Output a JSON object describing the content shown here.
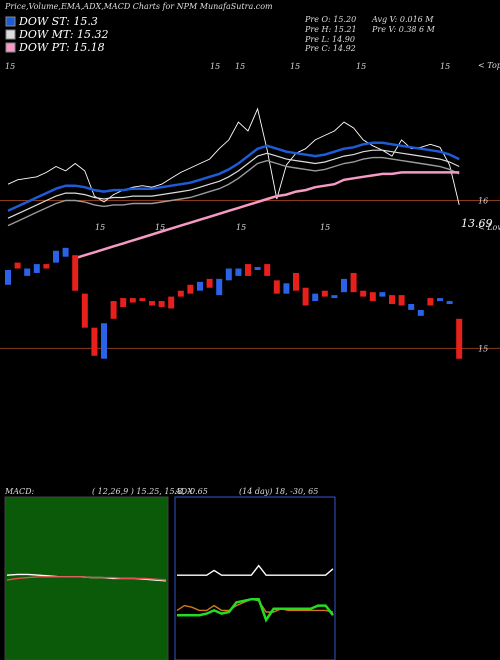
{
  "chart_data": [
    {
      "type": "candlestick",
      "title": "Price,Volume,EMA,ADX,MACD Charts for NPM MunafaSutra.com",
      "info": [
        "Pre O: 15.20",
        "Pre H: 15.21",
        "Pre L: 14.90",
        "Pre C: 14.92",
        "Avg V: 0.016 M",
        "Pre V: 0.38 6 M"
      ],
      "annotations": [
        "< Tops",
        "< Lows",
        "13.69"
      ],
      "marks": [
        "15",
        "15",
        "15",
        "15",
        "15",
        "15",
        "15",
        "15",
        "15",
        "15"
      ],
      "ylim": [
        14.11,
        16.95
      ],
      "yticks": [
        16,
        15
      ],
      "open": [
        15.43,
        15.58,
        15.49,
        15.51,
        15.57,
        15.58,
        15.62,
        15.63,
        15.37,
        15.14,
        14.93,
        15.32,
        15.34,
        15.34,
        15.34,
        15.32,
        15.32,
        15.35,
        15.39,
        15.43,
        15.39,
        15.47,
        15.36,
        15.46,
        15.49,
        15.57,
        15.53,
        15.57,
        15.46,
        15.37,
        15.51,
        15.41,
        15.32,
        15.39,
        15.34,
        15.38,
        15.51,
        15.39,
        15.38,
        15.35,
        15.36,
        15.36,
        15.26,
        15.22,
        15.34,
        15.32,
        15.3,
        15.2
      ],
      "close": [
        15.53,
        15.54,
        15.54,
        15.57,
        15.54,
        15.66,
        15.68,
        15.39,
        15.14,
        14.95,
        15.17,
        15.2,
        15.28,
        15.31,
        15.32,
        15.29,
        15.28,
        15.27,
        15.35,
        15.37,
        15.45,
        15.41,
        15.47,
        15.54,
        15.54,
        15.49,
        15.55,
        15.49,
        15.37,
        15.44,
        15.39,
        15.29,
        15.37,
        15.35,
        15.36,
        15.47,
        15.38,
        15.35,
        15.32,
        15.38,
        15.3,
        15.29,
        15.3,
        15.26,
        15.29,
        15.34,
        15.32,
        14.93
      ],
      "up_color": "#2a62e8",
      "down_color": "#e8201c",
      "series": [
        {
          "color": "#ffffff",
          "values": [
            16.11,
            16.14,
            16.15,
            16.16,
            16.19,
            16.23,
            16.2,
            16.25,
            16.2,
            16.03,
            15.99,
            16.04,
            16.07,
            16.09,
            16.1,
            16.09,
            16.11,
            16.15,
            16.19,
            16.22,
            16.25,
            16.28,
            16.35,
            16.41,
            16.53,
            16.47,
            16.62,
            16.34,
            16.01,
            16.24,
            16.32,
            16.35,
            16.41,
            16.44,
            16.47,
            16.53,
            16.49,
            16.41,
            16.37,
            16.34,
            16.3,
            16.41,
            16.35,
            16.36,
            16.38,
            16.36,
            16.24,
            15.97
          ]
        },
        {
          "color": "#9a9a9a",
          "values": [
            15.83,
            15.86,
            15.89,
            15.92,
            15.95,
            15.98,
            16.0,
            16.0,
            15.99,
            15.97,
            15.96,
            15.97,
            15.97,
            15.98,
            15.98,
            15.98,
            15.99,
            16.0,
            16.01,
            16.02,
            16.04,
            16.06,
            16.08,
            16.11,
            16.15,
            16.2,
            16.25,
            16.27,
            16.25,
            16.23,
            16.22,
            16.21,
            16.2,
            16.21,
            16.23,
            16.25,
            16.26,
            16.28,
            16.29,
            16.29,
            16.28,
            16.27,
            16.26,
            16.25,
            16.24,
            16.23,
            16.21,
            16.18
          ]
        },
        {
          "name": "DOW ST: 15.3",
          "color": "#1e5bd6",
          "values": [
            15.93,
            15.96,
            15.99,
            16.02,
            16.05,
            16.08,
            16.1,
            16.1,
            16.09,
            16.07,
            16.06,
            16.07,
            16.07,
            16.08,
            16.08,
            16.08,
            16.09,
            16.1,
            16.11,
            16.12,
            16.14,
            16.16,
            16.18,
            16.21,
            16.25,
            16.3,
            16.35,
            16.37,
            16.35,
            16.33,
            16.32,
            16.31,
            16.3,
            16.31,
            16.33,
            16.35,
            16.36,
            16.38,
            16.39,
            16.39,
            16.38,
            16.37,
            16.36,
            16.35,
            16.34,
            16.33,
            16.31,
            16.28
          ]
        },
        {
          "name": "DOW MT: 15.32",
          "color": "#dddddd",
          "values": [
            15.88,
            15.91,
            15.94,
            15.97,
            16.0,
            16.03,
            16.05,
            16.05,
            16.04,
            16.02,
            16.01,
            16.02,
            16.02,
            16.03,
            16.03,
            16.03,
            16.04,
            16.05,
            16.06,
            16.07,
            16.09,
            16.11,
            16.13,
            16.16,
            16.2,
            16.25,
            16.3,
            16.32,
            16.3,
            16.28,
            16.27,
            16.26,
            16.25,
            16.26,
            16.28,
            16.3,
            16.31,
            16.33,
            16.34,
            16.34,
            16.33,
            16.32,
            16.31,
            16.3,
            16.29,
            16.28,
            16.26,
            16.23
          ]
        },
        {
          "name": "DOW PT: 15.18",
          "color": "#f59ac4",
          "values": [
            null,
            null,
            null,
            null,
            null,
            null,
            null,
            15.61,
            15.63,
            15.65,
            15.67,
            15.69,
            15.71,
            15.73,
            15.75,
            15.77,
            15.79,
            15.81,
            15.83,
            15.85,
            15.87,
            15.89,
            15.91,
            15.93,
            15.95,
            15.97,
            15.99,
            16.01,
            16.03,
            16.04,
            16.06,
            16.07,
            16.09,
            16.1,
            16.11,
            16.14,
            16.15,
            16.16,
            16.17,
            16.18,
            16.18,
            16.19,
            16.19,
            16.19,
            16.19,
            16.19,
            16.19,
            16.19
          ]
        }
      ]
    },
    {
      "type": "line",
      "title": "MACD:",
      "subtitle": "( 12,26,9 ) 15.25, 15.8, -0.65",
      "ylim": [
        -1,
        1
      ],
      "background": "#0a5a0a",
      "series": [
        {
          "color": "#ffffff",
          "values": [
            0.06,
            0.07,
            0.07,
            0.06,
            0.05,
            0.04,
            0.04,
            0.04,
            0.03,
            0.03,
            0.02,
            0.02,
            0.02,
            0.01,
            0.0,
            -0.01
          ]
        },
        {
          "color": "#e05050",
          "values": [
            0.0,
            0.02,
            0.03,
            0.04,
            0.04,
            0.04,
            0.04,
            0.04,
            0.03,
            0.03,
            0.03,
            0.02,
            0.02,
            0.02,
            0.01,
            0.0
          ]
        }
      ]
    },
    {
      "type": "line",
      "title": "ADX",
      "subtitle": "(14 day) 18, -30, 65",
      "ylim": [
        0,
        100
      ],
      "background": "#000000",
      "series": [
        {
          "color": "#ffffff",
          "values": [
            53,
            53,
            53,
            53,
            53,
            56,
            53,
            53,
            53,
            53,
            53,
            59,
            53,
            53,
            53,
            53,
            53,
            53,
            53,
            53,
            53,
            57
          ]
        },
        {
          "color": "#d07a20",
          "values": [
            31,
            34,
            33,
            31,
            31,
            34,
            31,
            31,
            34,
            36,
            38,
            37,
            30,
            30,
            32,
            31,
            31,
            31,
            31,
            31,
            31,
            30
          ]
        },
        {
          "color": "#22dd22",
          "values": [
            28,
            28,
            28,
            28,
            29,
            31,
            29,
            30,
            36,
            37,
            38,
            38,
            25,
            32,
            32,
            32,
            32,
            32,
            32,
            34,
            34,
            28
          ]
        }
      ]
    }
  ]
}
